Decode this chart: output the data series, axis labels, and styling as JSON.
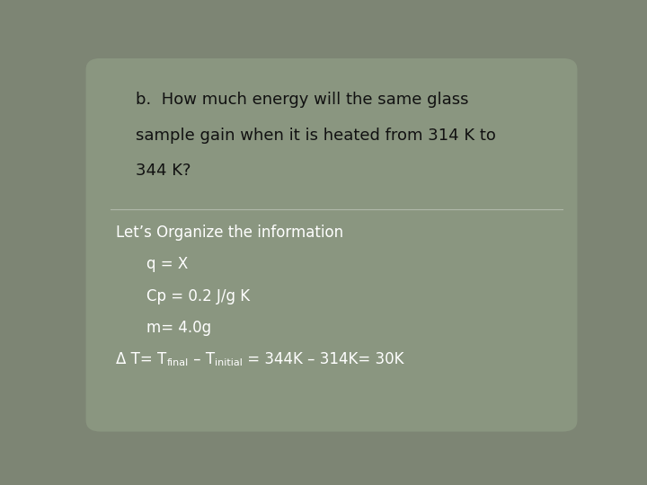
{
  "background_color": "#7d8574",
  "card_color": "#8a9680",
  "title_text_line1": "b.  How much energy will the same glass",
  "title_text_line2": "sample gain when it is heated from 314 K to",
  "title_text_line3": "344 K?",
  "title_color": "#111111",
  "title_fontsize": 13,
  "divider_color": "#b0b8aa",
  "body_color": "#ffffff",
  "body_fontsize": 12,
  "sub_fontsize": 8,
  "line1": "Let’s Organize the information",
  "line2": "q = X",
  "line3": "Cp = 0.2 J/g K",
  "line4": "m= 4.0g",
  "delta_part1": "Δ T= T",
  "subscript1": "final",
  "delta_part2": " – T",
  "subscript2": "initial",
  "delta_part3": " = 344K – 314K= 30K"
}
